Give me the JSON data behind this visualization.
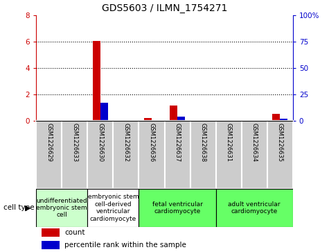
{
  "title": "GDS5603 / ILMN_1754271",
  "samples": [
    "GSM1226629",
    "GSM1226633",
    "GSM1226630",
    "GSM1226632",
    "GSM1226636",
    "GSM1226637",
    "GSM1226638",
    "GSM1226631",
    "GSM1226634",
    "GSM1226635"
  ],
  "count_values": [
    0,
    0,
    6.05,
    0,
    0.2,
    1.15,
    0,
    0,
    0,
    0.55
  ],
  "percentile_pct": [
    0,
    0,
    17,
    0,
    0,
    4,
    0,
    0,
    0,
    2
  ],
  "ylim_left": [
    0,
    8
  ],
  "ylim_right": [
    0,
    100
  ],
  "yticks_left": [
    0,
    2,
    4,
    6,
    8
  ],
  "yticks_right": [
    0,
    25,
    50,
    75,
    100
  ],
  "ytick_labels_right": [
    "0",
    "25",
    "50",
    "75",
    "100%"
  ],
  "left_color": "#cc0000",
  "right_color": "#0000cc",
  "bar_width": 0.3,
  "cell_types": [
    {
      "label": "undifferentiated\nembryonic stem\ncell",
      "start": 0,
      "end": 2,
      "color": "#ccffcc"
    },
    {
      "label": "embryonic stem\ncell-derived\nventricular\ncardiomyocyte",
      "start": 2,
      "end": 4,
      "color": "#ffffff"
    },
    {
      "label": "fetal ventricular\ncardiomyocyte",
      "start": 4,
      "end": 7,
      "color": "#66ff66"
    },
    {
      "label": "adult ventricular\ncardiomyocyte",
      "start": 7,
      "end": 10,
      "color": "#66ff66"
    }
  ],
  "cell_type_label": "cell type",
  "legend_count_label": "count",
  "legend_percentile_label": "percentile rank within the sample",
  "tick_area_bg": "#cccccc",
  "grid_yticks": [
    2,
    4,
    6
  ]
}
